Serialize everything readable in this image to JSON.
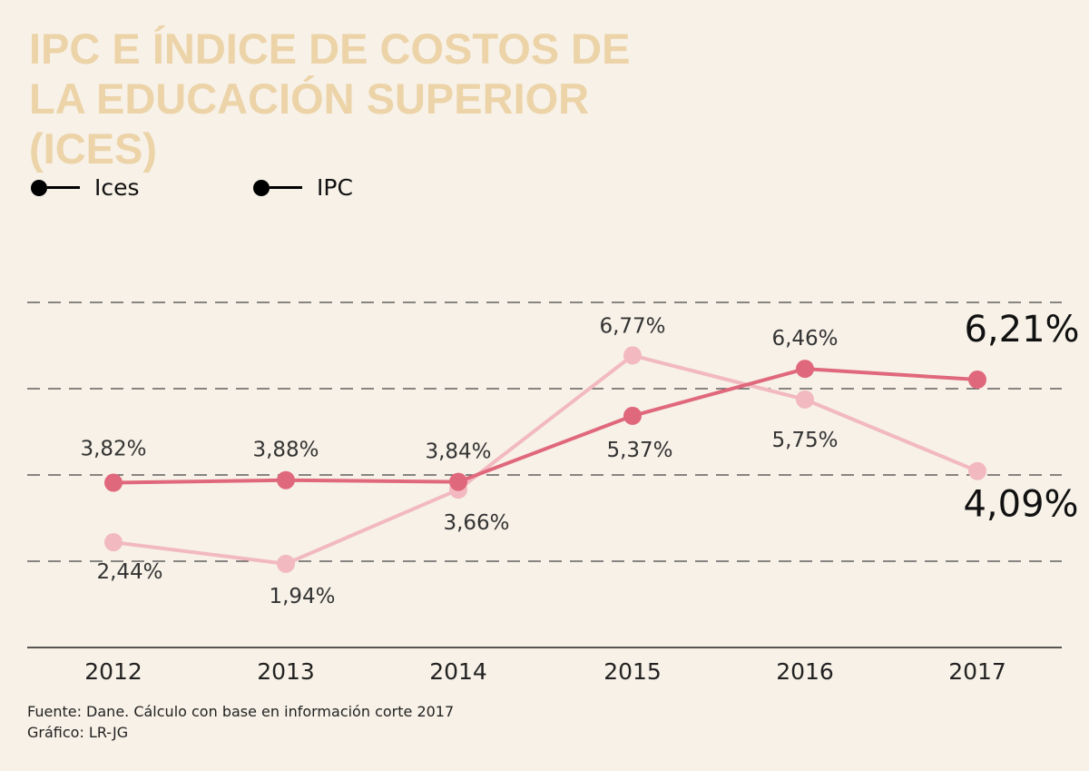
{
  "chart_data": {
    "type": "line",
    "title": "IPC E ÍNDICE DE COSTOS DE LA EDUCACIÓN SUPERIOR (ICES)",
    "categories": [
      "2012",
      "2013",
      "2014",
      "2015",
      "2016",
      "2017"
    ],
    "series": [
      {
        "name": "Ices",
        "values": [
          3.82,
          3.88,
          3.84,
          5.37,
          6.46,
          6.21
        ],
        "labels": [
          "3,82%",
          "3,88%",
          "3,84%",
          "5,37%",
          "6,46%",
          "6,21%"
        ],
        "color": "#e0687c"
      },
      {
        "name": "IPC",
        "values": [
          2.44,
          1.94,
          3.66,
          6.77,
          5.75,
          4.09
        ],
        "labels": [
          "2,44%",
          "1,94%",
          "3,66%",
          "6,77%",
          "5,75%",
          "4,09%"
        ],
        "color": "#f2b9c0"
      }
    ],
    "ylim": [
      0,
      8
    ],
    "gridlines": [
      2,
      4,
      6,
      8
    ],
    "grid": "dashed horizontal",
    "legend_position": "top-left",
    "legend_marker_color": "#000000"
  },
  "source": "Fuente: Dane. Cálculo con base en información corte 2017",
  "credit": "Gráfico: LR-JG"
}
